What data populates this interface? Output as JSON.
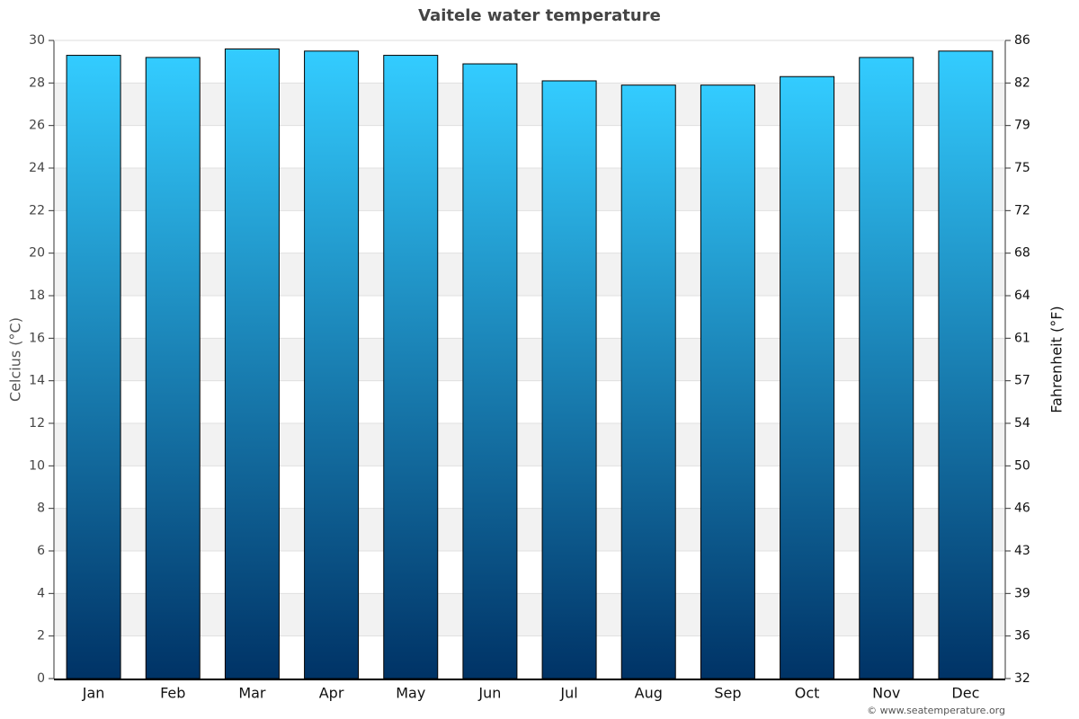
{
  "chart_data": {
    "type": "bar",
    "title": "Vaitele water temperature",
    "y_label": "Celcius (°C)",
    "y2_label": "Fahrenheit (°F)",
    "credit": "© www.seatemperature.org",
    "categories": [
      "Jan",
      "Feb",
      "Mar",
      "Apr",
      "May",
      "Jun",
      "Jul",
      "Aug",
      "Sep",
      "Oct",
      "Nov",
      "Dec"
    ],
    "values": [
      29.3,
      29.2,
      29.6,
      29.5,
      29.3,
      28.9,
      28.1,
      27.9,
      27.9,
      28.3,
      29.2,
      29.5
    ],
    "color_top": "#33ccff",
    "color_bottom": "#003366",
    "ylim": [
      0,
      30
    ],
    "yticks": [
      0,
      2,
      4,
      6,
      8,
      10,
      12,
      14,
      16,
      18,
      20,
      22,
      24,
      26,
      28,
      30
    ],
    "y2lim": [
      32,
      86
    ],
    "y2ticks": [
      32,
      {
        "value": 35.6,
        "label": "36"
      },
      {
        "value": 39.2,
        "label": "39"
      },
      {
        "value": 42.8,
        "label": "43"
      },
      {
        "value": 46.4,
        "label": "46"
      },
      50,
      {
        "value": 53.6,
        "label": "54"
      },
      {
        "value": 57.2,
        "label": "57"
      },
      {
        "value": 60.8,
        "label": "61"
      },
      {
        "value": 64.4,
        "label": "64"
      },
      68,
      {
        "value": 71.6,
        "label": "72"
      },
      {
        "value": 75.2,
        "label": "75"
      },
      {
        "value": 78.8,
        "label": "79"
      },
      {
        "value": 82.4,
        "label": "82"
      },
      86
    ],
    "grid": true
  }
}
